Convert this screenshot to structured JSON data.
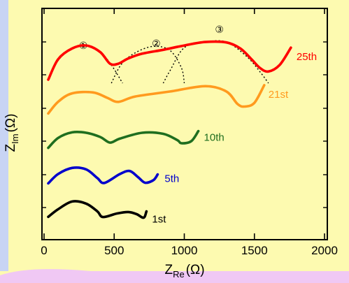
{
  "chart_data": {
    "type": "line",
    "title": "",
    "xlabel": "Z",
    "xlabel_sub": "Re",
    "xlabel_unit": "(Ω)",
    "ylabel": "Z",
    "ylabel_sub": "Im",
    "ylabel_unit": "(Ω)",
    "xlim": [
      0,
      2000
    ],
    "xticks": [
      "0",
      "500",
      "1000",
      "1500",
      "2000"
    ],
    "y_tick_labels": false,
    "grid": false,
    "background": "#fdfab0",
    "left_band": "#c8d4f4",
    "bottom_band": "#f0c8f4",
    "series": [
      {
        "name": "1st",
        "color": "#000000",
        "points": [
          [
            30,
            0.09
          ],
          [
            100,
            0.45
          ],
          [
            200,
            0.82
          ],
          [
            300,
            0.72
          ],
          [
            380,
            0.35
          ],
          [
            420,
            0.08
          ],
          [
            520,
            0.25
          ],
          [
            600,
            0.32
          ],
          [
            660,
            0.22
          ],
          [
            710,
            0.05
          ],
          [
            730,
            0.35
          ]
        ]
      },
      {
        "name": "5th",
        "color": "#0000cc",
        "points": [
          [
            30,
            0.09
          ],
          [
            100,
            0.55
          ],
          [
            200,
            0.85
          ],
          [
            300,
            0.78
          ],
          [
            380,
            0.35
          ],
          [
            430,
            0.11
          ],
          [
            540,
            0.55
          ],
          [
            610,
            0.7
          ],
          [
            670,
            0.4
          ],
          [
            720,
            0.12
          ],
          [
            780,
            0.25
          ],
          [
            810,
            0.53
          ]
        ]
      },
      {
        "name": "10th",
        "color": "#1f6e1f",
        "points": [
          [
            30,
            0.08
          ],
          [
            100,
            0.55
          ],
          [
            200,
            0.82
          ],
          [
            300,
            0.8
          ],
          [
            400,
            0.6
          ],
          [
            470,
            0.33
          ],
          [
            540,
            0.52
          ],
          [
            700,
            0.8
          ],
          [
            850,
            0.75
          ],
          [
            950,
            0.45
          ],
          [
            980,
            0.3
          ],
          [
            1050,
            0.4
          ],
          [
            1100,
            0.88
          ]
        ]
      },
      {
        "name": "21st",
        "color": "#ff9a1e",
        "points": [
          [
            30,
            0.08
          ],
          [
            100,
            0.45
          ],
          [
            200,
            0.72
          ],
          [
            350,
            0.75
          ],
          [
            450,
            0.58
          ],
          [
            530,
            0.45
          ],
          [
            650,
            0.62
          ],
          [
            900,
            0.78
          ],
          [
            1150,
            0.95
          ],
          [
            1300,
            0.78
          ],
          [
            1380,
            0.38
          ],
          [
            1430,
            0.3
          ],
          [
            1500,
            0.42
          ],
          [
            1570,
            0.98
          ]
        ]
      },
      {
        "name": "25th",
        "color": "#ff0000",
        "points": [
          [
            30,
            0.08
          ],
          [
            100,
            0.55
          ],
          [
            200,
            0.8
          ],
          [
            300,
            0.87
          ],
          [
            400,
            0.72
          ],
          [
            470,
            0.45
          ],
          [
            530,
            0.45
          ],
          [
            600,
            0.57
          ],
          [
            700,
            0.68
          ],
          [
            850,
            0.77
          ],
          [
            1000,
            0.87
          ],
          [
            1150,
            0.95
          ],
          [
            1300,
            0.94
          ],
          [
            1400,
            0.8
          ],
          [
            1480,
            0.55
          ],
          [
            1540,
            0.35
          ],
          [
            1600,
            0.27
          ],
          [
            1680,
            0.42
          ],
          [
            1760,
            0.82
          ]
        ]
      }
    ],
    "fit_arcs": [
      {
        "marker": "①",
        "points": [
          [
            30,
            0.08
          ],
          [
            100,
            0.52
          ],
          [
            200,
            0.8
          ],
          [
            300,
            0.87
          ],
          [
            400,
            0.72
          ],
          [
            480,
            0.42
          ],
          [
            560,
            0.0
          ]
        ]
      },
      {
        "marker": "②",
        "points": [
          [
            480,
            0.0
          ],
          [
            550,
            0.43
          ],
          [
            650,
            0.7
          ],
          [
            780,
            0.85
          ],
          [
            900,
            0.75
          ],
          [
            980,
            0.35
          ],
          [
            1000,
            0.0
          ]
        ]
      },
      {
        "marker": "③",
        "points": [
          [
            850,
            0.0
          ],
          [
            900,
            0.3
          ],
          [
            1000,
            0.82
          ],
          [
            1150,
            0.95
          ],
          [
            1300,
            0.95
          ],
          [
            1450,
            0.6
          ],
          [
            1550,
            0.22
          ],
          [
            1600,
            0.0
          ]
        ]
      }
    ]
  }
}
